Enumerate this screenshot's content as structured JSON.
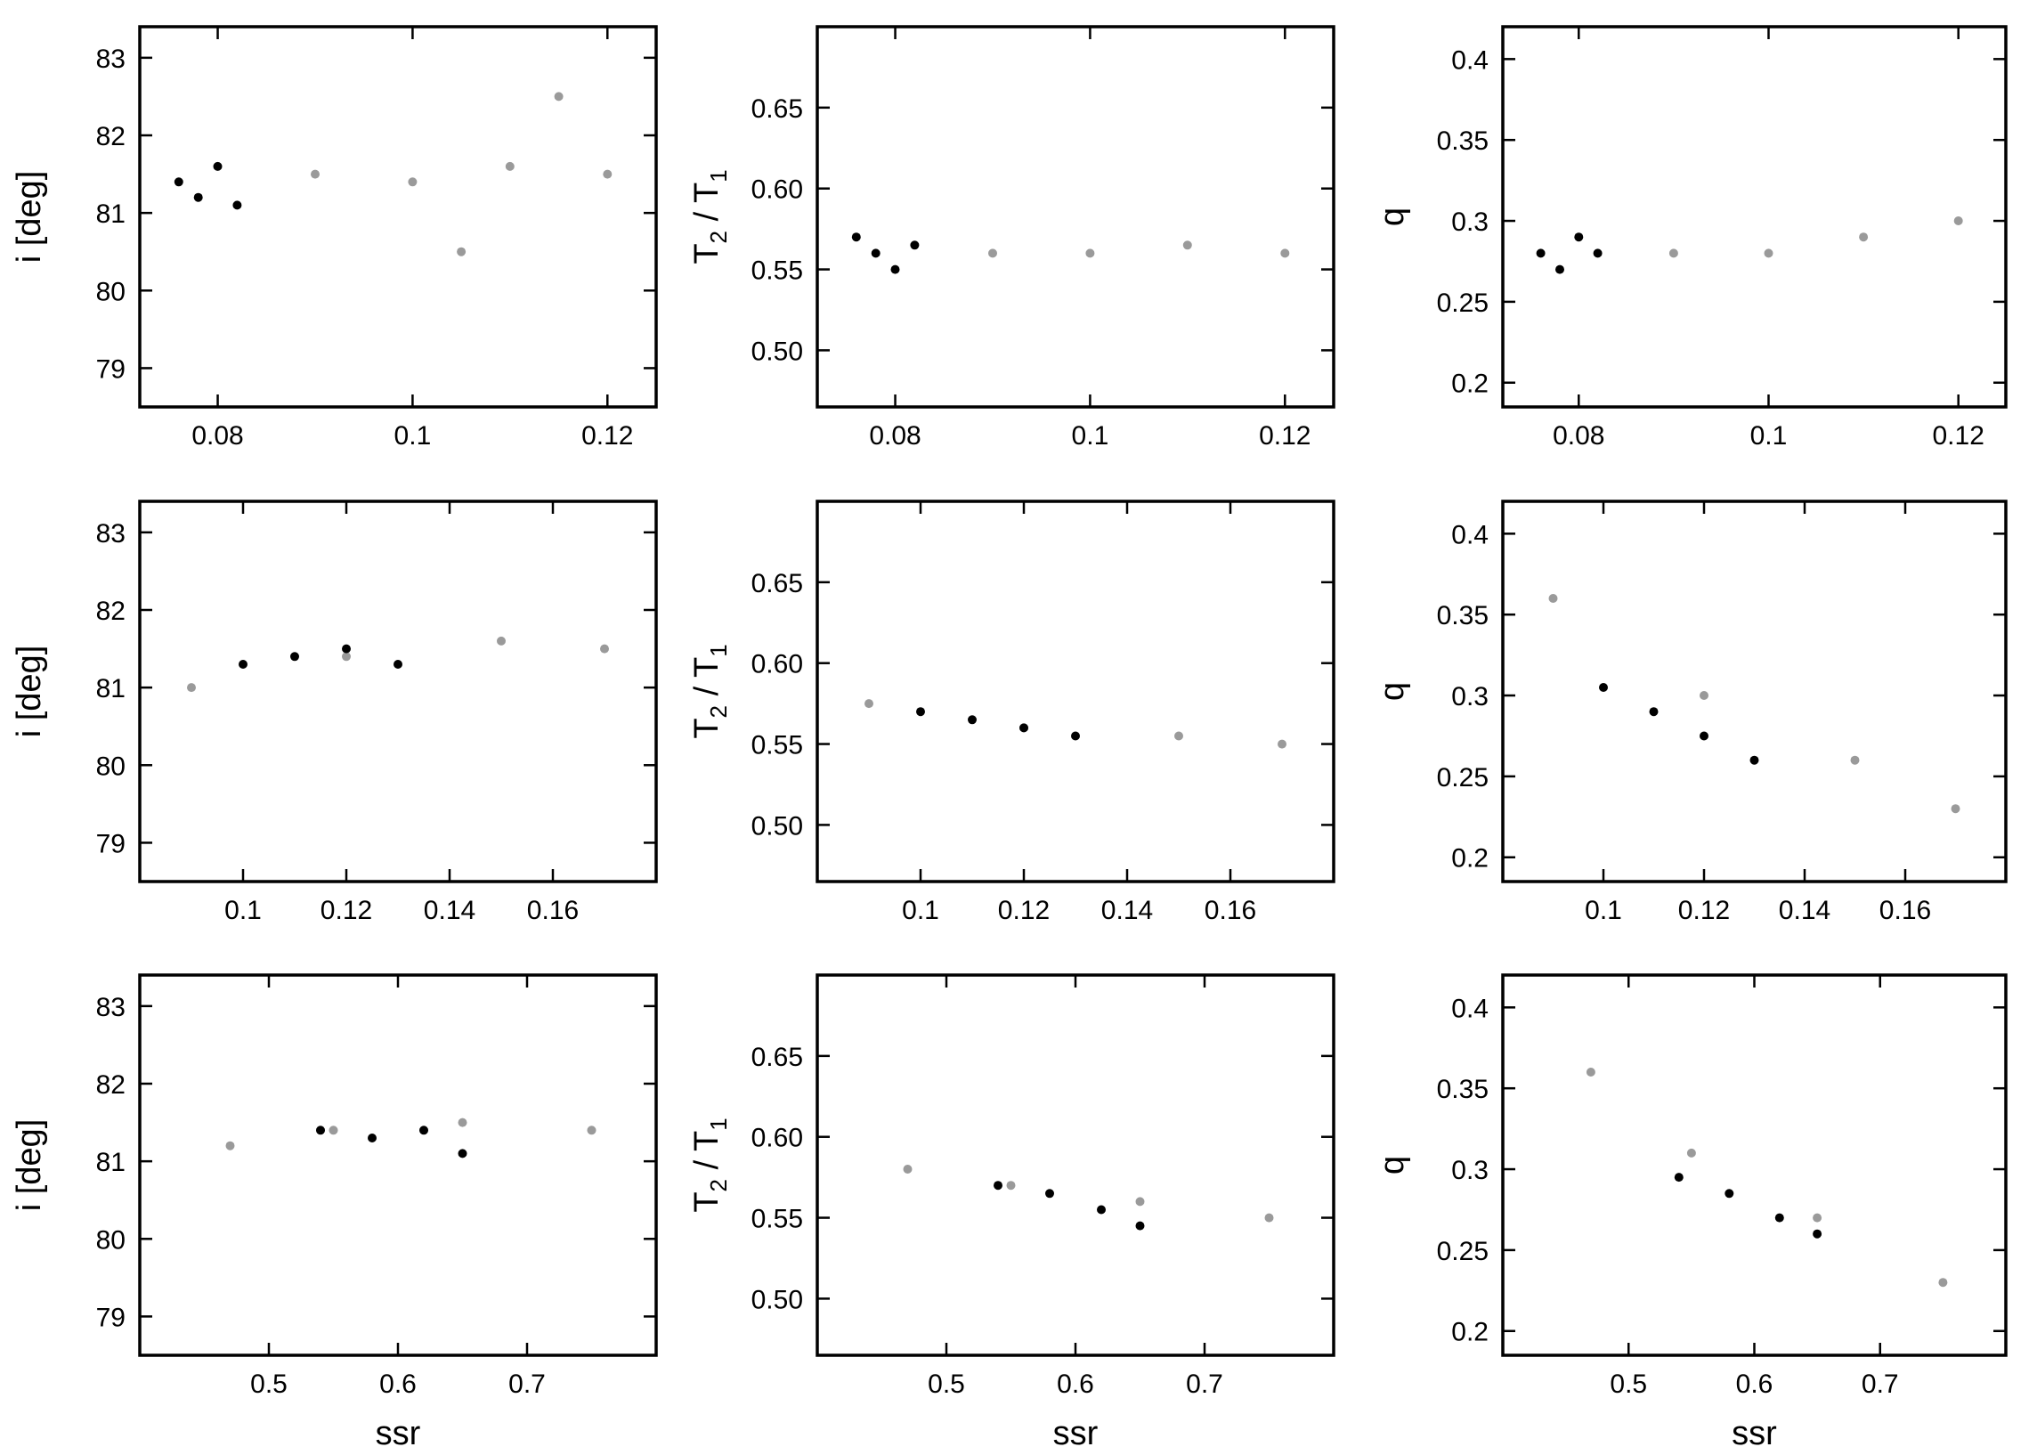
{
  "colors": {
    "cloud": "#9a9a9a",
    "best": "#000000",
    "frame": "#000000"
  },
  "chart_data": [
    {
      "type": "scatter",
      "row": 0,
      "col": 0,
      "xlim": [
        0.072,
        0.125
      ],
      "ylim": [
        78.5,
        83.4
      ],
      "xticks": [
        0.08,
        0.1,
        0.12
      ],
      "xtick_labels": [
        "0.08",
        "0.1",
        "0.12"
      ],
      "yticks": [
        79,
        80,
        81,
        82,
        83
      ],
      "ytick_labels": [
        "79",
        "80",
        "81",
        "82",
        "83"
      ],
      "ylabel": "i  [deg]",
      "xlabel": "",
      "series": [
        {
          "color": "gray",
          "x": [
            0.09,
            0.1,
            0.11,
            0.12,
            0.105,
            0.115
          ],
          "y": [
            81.5,
            81.4,
            81.6,
            81.5,
            80.5,
            82.5
          ]
        },
        {
          "color": "black",
          "x": [
            0.076,
            0.078,
            0.08,
            0.082
          ],
          "y": [
            81.4,
            81.2,
            81.6,
            81.1
          ]
        }
      ]
    },
    {
      "type": "scatter",
      "row": 0,
      "col": 1,
      "xlim": [
        0.072,
        0.125
      ],
      "ylim": [
        0.465,
        0.7
      ],
      "xticks": [
        0.08,
        0.1,
        0.12
      ],
      "xtick_labels": [
        "0.08",
        "0.1",
        "0.12"
      ],
      "yticks": [
        0.5,
        0.55,
        0.6,
        0.65
      ],
      "ytick_labels": [
        "0.50",
        "0.55",
        "0.60",
        "0.65"
      ],
      "ylabel": "T2 / T1",
      "xlabel": "",
      "series": [
        {
          "color": "gray",
          "x": [
            0.09,
            0.1,
            0.11,
            0.12
          ],
          "y": [
            0.56,
            0.56,
            0.565,
            0.56
          ]
        },
        {
          "color": "black",
          "x": [
            0.076,
            0.078,
            0.08,
            0.082
          ],
          "y": [
            0.57,
            0.56,
            0.55,
            0.565
          ]
        }
      ]
    },
    {
      "type": "scatter",
      "row": 0,
      "col": 2,
      "xlim": [
        0.072,
        0.125
      ],
      "ylim": [
        0.185,
        0.42
      ],
      "xticks": [
        0.08,
        0.1,
        0.12
      ],
      "xtick_labels": [
        "0.08",
        "0.1",
        "0.12"
      ],
      "yticks": [
        0.2,
        0.25,
        0.3,
        0.35,
        0.4
      ],
      "ytick_labels": [
        "0.2",
        "0.25",
        "0.3",
        "0.35",
        "0.4"
      ],
      "ylabel": "q",
      "xlabel": "",
      "series": [
        {
          "color": "gray",
          "x": [
            0.09,
            0.1,
            0.11,
            0.12
          ],
          "y": [
            0.28,
            0.28,
            0.29,
            0.3
          ]
        },
        {
          "color": "black",
          "x": [
            0.076,
            0.078,
            0.08,
            0.082
          ],
          "y": [
            0.28,
            0.27,
            0.29,
            0.28
          ]
        }
      ]
    },
    {
      "type": "scatter",
      "row": 1,
      "col": 0,
      "xlim": [
        0.08,
        0.18
      ],
      "ylim": [
        78.5,
        83.4
      ],
      "xticks": [
        0.1,
        0.12,
        0.14,
        0.16
      ],
      "xtick_labels": [
        "0.1",
        "0.12",
        "0.14",
        "0.16"
      ],
      "yticks": [
        79,
        80,
        81,
        82,
        83
      ],
      "ytick_labels": [
        "79",
        "80",
        "81",
        "82",
        "83"
      ],
      "ylabel": "i  [deg]",
      "xlabel": "",
      "series": [
        {
          "color": "gray",
          "x": [
            0.09,
            0.12,
            0.15,
            0.17
          ],
          "y": [
            81.0,
            81.4,
            81.6,
            81.5
          ]
        },
        {
          "color": "black",
          "x": [
            0.1,
            0.11,
            0.12,
            0.13
          ],
          "y": [
            81.3,
            81.4,
            81.5,
            81.3
          ]
        }
      ]
    },
    {
      "type": "scatter",
      "row": 1,
      "col": 1,
      "xlim": [
        0.08,
        0.18
      ],
      "ylim": [
        0.465,
        0.7
      ],
      "xticks": [
        0.1,
        0.12,
        0.14,
        0.16
      ],
      "xtick_labels": [
        "0.1",
        "0.12",
        "0.14",
        "0.16"
      ],
      "yticks": [
        0.5,
        0.55,
        0.6,
        0.65
      ],
      "ytick_labels": [
        "0.50",
        "0.55",
        "0.60",
        "0.65"
      ],
      "ylabel": "T2 / T1",
      "xlabel": "",
      "series": [
        {
          "color": "gray",
          "x": [
            0.09,
            0.12,
            0.15,
            0.17
          ],
          "y": [
            0.575,
            0.56,
            0.555,
            0.55
          ]
        },
        {
          "color": "black",
          "x": [
            0.1,
            0.11,
            0.12,
            0.13
          ],
          "y": [
            0.57,
            0.565,
            0.56,
            0.555
          ]
        }
      ]
    },
    {
      "type": "scatter",
      "row": 1,
      "col": 2,
      "xlim": [
        0.08,
        0.18
      ],
      "ylim": [
        0.185,
        0.42
      ],
      "xticks": [
        0.1,
        0.12,
        0.14,
        0.16
      ],
      "xtick_labels": [
        "0.1",
        "0.12",
        "0.14",
        "0.16"
      ],
      "yticks": [
        0.2,
        0.25,
        0.3,
        0.35,
        0.4
      ],
      "ytick_labels": [
        "0.2",
        "0.25",
        "0.3",
        "0.35",
        "0.4"
      ],
      "ylabel": "q",
      "xlabel": "",
      "series": [
        {
          "color": "gray",
          "x": [
            0.09,
            0.12,
            0.15,
            0.17
          ],
          "y": [
            0.36,
            0.3,
            0.26,
            0.23
          ]
        },
        {
          "color": "black",
          "x": [
            0.1,
            0.11,
            0.12,
            0.13
          ],
          "y": [
            0.305,
            0.29,
            0.275,
            0.26
          ]
        }
      ]
    },
    {
      "type": "scatter",
      "row": 2,
      "col": 0,
      "xlim": [
        0.4,
        0.8
      ],
      "ylim": [
        78.5,
        83.4
      ],
      "xticks": [
        0.5,
        0.6,
        0.7
      ],
      "xtick_labels": [
        "0.5",
        "0.6",
        "0.7"
      ],
      "yticks": [
        79,
        80,
        81,
        82,
        83
      ],
      "ytick_labels": [
        "79",
        "80",
        "81",
        "82",
        "83"
      ],
      "ylabel": "i  [deg]",
      "xlabel": "ssr",
      "series": [
        {
          "color": "gray",
          "x": [
            0.47,
            0.55,
            0.65,
            0.75
          ],
          "y": [
            81.2,
            81.4,
            81.5,
            81.4
          ]
        },
        {
          "color": "black",
          "x": [
            0.54,
            0.58,
            0.62,
            0.65
          ],
          "y": [
            81.4,
            81.3,
            81.4,
            81.1
          ]
        }
      ]
    },
    {
      "type": "scatter",
      "row": 2,
      "col": 1,
      "xlim": [
        0.4,
        0.8
      ],
      "ylim": [
        0.465,
        0.7
      ],
      "xticks": [
        0.5,
        0.6,
        0.7
      ],
      "xtick_labels": [
        "0.5",
        "0.6",
        "0.7"
      ],
      "yticks": [
        0.5,
        0.55,
        0.6,
        0.65
      ],
      "ytick_labels": [
        "0.50",
        "0.55",
        "0.60",
        "0.65"
      ],
      "ylabel": "T2 / T1",
      "xlabel": "ssr",
      "series": [
        {
          "color": "gray",
          "x": [
            0.47,
            0.55,
            0.65,
            0.75
          ],
          "y": [
            0.58,
            0.57,
            0.56,
            0.55
          ]
        },
        {
          "color": "black",
          "x": [
            0.54,
            0.58,
            0.62,
            0.65
          ],
          "y": [
            0.57,
            0.565,
            0.555,
            0.545
          ]
        }
      ]
    },
    {
      "type": "scatter",
      "row": 2,
      "col": 2,
      "xlim": [
        0.4,
        0.8
      ],
      "ylim": [
        0.185,
        0.42
      ],
      "xticks": [
        0.5,
        0.6,
        0.7
      ],
      "xtick_labels": [
        "0.5",
        "0.6",
        "0.7"
      ],
      "yticks": [
        0.2,
        0.25,
        0.3,
        0.35,
        0.4
      ],
      "ytick_labels": [
        "0.2",
        "0.25",
        "0.3",
        "0.35",
        "0.4"
      ],
      "ylabel": "q",
      "xlabel": "ssr",
      "series": [
        {
          "color": "gray",
          "x": [
            0.47,
            0.55,
            0.65,
            0.75
          ],
          "y": [
            0.36,
            0.31,
            0.27,
            0.23
          ]
        },
        {
          "color": "black",
          "x": [
            0.54,
            0.58,
            0.62,
            0.65
          ],
          "y": [
            0.295,
            0.285,
            0.27,
            0.26
          ]
        }
      ]
    }
  ]
}
